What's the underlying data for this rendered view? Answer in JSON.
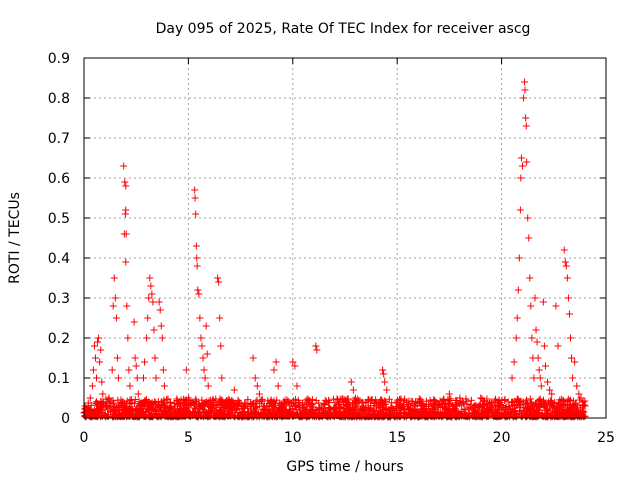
{
  "chart_data": {
    "type": "scatter",
    "title": "Day 095 of 2025, Rate Of TEC Index for receiver ascg",
    "xlabel": "GPS time / hours",
    "ylabel": "ROTI / TECUs",
    "xlim": [
      0,
      25
    ],
    "ylim": [
      0,
      0.9
    ],
    "xticks": [
      0,
      5,
      10,
      15,
      20,
      25
    ],
    "yticks": [
      0,
      0.1,
      0.2,
      0.3,
      0.4,
      0.5,
      0.6,
      0.7,
      0.8,
      0.9
    ],
    "xtick_labels": [
      "0",
      "5",
      "10",
      "15",
      "20",
      "25"
    ],
    "ytick_labels": [
      "0",
      "0.1",
      "0.2",
      "0.3",
      "0.4",
      "0.5",
      "0.6",
      "0.7",
      "0.8",
      "0.9"
    ],
    "grid": true,
    "marker": "+",
    "color": "#ff0000",
    "series": [
      {
        "name": "ROTI",
        "points": [
          [
            0.05,
            0.03
          ],
          [
            0.15,
            0.02
          ],
          [
            0.3,
            0.05
          ],
          [
            0.4,
            0.08
          ],
          [
            0.45,
            0.12
          ],
          [
            0.5,
            0.18
          ],
          [
            0.55,
            0.15
          ],
          [
            0.6,
            0.1
          ],
          [
            0.65,
            0.19
          ],
          [
            0.7,
            0.2
          ],
          [
            0.75,
            0.14
          ],
          [
            0.8,
            0.17
          ],
          [
            0.85,
            0.09
          ],
          [
            0.9,
            0.06
          ],
          [
            1.2,
            0.05
          ],
          [
            1.35,
            0.12
          ],
          [
            1.4,
            0.28
          ],
          [
            1.45,
            0.35
          ],
          [
            1.5,
            0.3
          ],
          [
            1.55,
            0.25
          ],
          [
            1.6,
            0.15
          ],
          [
            1.65,
            0.1
          ],
          [
            1.9,
            0.63
          ],
          [
            1.95,
            0.59
          ],
          [
            2.0,
            0.58
          ],
          [
            2.0,
            0.52
          ],
          [
            1.98,
            0.51
          ],
          [
            1.93,
            0.46
          ],
          [
            2.02,
            0.46
          ],
          [
            2.0,
            0.39
          ],
          [
            2.05,
            0.28
          ],
          [
            2.1,
            0.2
          ],
          [
            2.15,
            0.12
          ],
          [
            2.2,
            0.08
          ],
          [
            2.4,
            0.24
          ],
          [
            2.45,
            0.15
          ],
          [
            2.5,
            0.13
          ],
          [
            2.55,
            0.1
          ],
          [
            2.6,
            0.06
          ],
          [
            2.85,
            0.1
          ],
          [
            2.9,
            0.14
          ],
          [
            3.0,
            0.2
          ],
          [
            3.05,
            0.25
          ],
          [
            3.1,
            0.3
          ],
          [
            3.15,
            0.35
          ],
          [
            3.2,
            0.33
          ],
          [
            3.25,
            0.31
          ],
          [
            3.3,
            0.29
          ],
          [
            3.35,
            0.22
          ],
          [
            3.4,
            0.15
          ],
          [
            3.45,
            0.1
          ],
          [
            3.6,
            0.29
          ],
          [
            3.65,
            0.27
          ],
          [
            3.7,
            0.23
          ],
          [
            3.75,
            0.2
          ],
          [
            3.8,
            0.12
          ],
          [
            3.85,
            0.08
          ],
          [
            4.9,
            0.12
          ],
          [
            5.0,
            0.05
          ],
          [
            5.3,
            0.57
          ],
          [
            5.32,
            0.55
          ],
          [
            5.35,
            0.51
          ],
          [
            5.38,
            0.43
          ],
          [
            5.4,
            0.4
          ],
          [
            5.42,
            0.38
          ],
          [
            5.45,
            0.32
          ],
          [
            5.5,
            0.31
          ],
          [
            5.55,
            0.25
          ],
          [
            5.6,
            0.2
          ],
          [
            5.65,
            0.18
          ],
          [
            5.7,
            0.15
          ],
          [
            5.75,
            0.12
          ],
          [
            5.8,
            0.1
          ],
          [
            5.85,
            0.23
          ],
          [
            5.9,
            0.16
          ],
          [
            5.95,
            0.08
          ],
          [
            6.4,
            0.35
          ],
          [
            6.45,
            0.34
          ],
          [
            6.5,
            0.25
          ],
          [
            6.55,
            0.18
          ],
          [
            6.6,
            0.1
          ],
          [
            7.2,
            0.07
          ],
          [
            8.1,
            0.15
          ],
          [
            8.2,
            0.1
          ],
          [
            8.3,
            0.08
          ],
          [
            8.4,
            0.06
          ],
          [
            9.1,
            0.12
          ],
          [
            9.2,
            0.14
          ],
          [
            9.3,
            0.08
          ],
          [
            10.0,
            0.14
          ],
          [
            10.1,
            0.13
          ],
          [
            10.2,
            0.08
          ],
          [
            11.1,
            0.18
          ],
          [
            11.15,
            0.17
          ],
          [
            12.8,
            0.09
          ],
          [
            12.9,
            0.07
          ],
          [
            13.0,
            0.05
          ],
          [
            14.3,
            0.12
          ],
          [
            14.35,
            0.11
          ],
          [
            14.4,
            0.09
          ],
          [
            14.5,
            0.07
          ],
          [
            17.5,
            0.06
          ],
          [
            18.0,
            0.05
          ],
          [
            19.0,
            0.05
          ],
          [
            20.5,
            0.1
          ],
          [
            20.6,
            0.14
          ],
          [
            20.7,
            0.2
          ],
          [
            20.75,
            0.25
          ],
          [
            20.8,
            0.32
          ],
          [
            20.85,
            0.4
          ],
          [
            20.9,
            0.52
          ],
          [
            20.92,
            0.6
          ],
          [
            20.95,
            0.65
          ],
          [
            21.0,
            0.63
          ],
          [
            21.05,
            0.8
          ],
          [
            21.1,
            0.84
          ],
          [
            21.12,
            0.82
          ],
          [
            21.15,
            0.75
          ],
          [
            21.18,
            0.73
          ],
          [
            21.2,
            0.64
          ],
          [
            21.25,
            0.5
          ],
          [
            21.3,
            0.45
          ],
          [
            21.35,
            0.35
          ],
          [
            21.4,
            0.28
          ],
          [
            21.45,
            0.2
          ],
          [
            21.5,
            0.15
          ],
          [
            21.55,
            0.1
          ],
          [
            21.6,
            0.3
          ],
          [
            21.65,
            0.22
          ],
          [
            21.7,
            0.19
          ],
          [
            21.75,
            0.15
          ],
          [
            21.8,
            0.12
          ],
          [
            21.85,
            0.1
          ],
          [
            21.9,
            0.08
          ],
          [
            22.0,
            0.29
          ],
          [
            22.05,
            0.18
          ],
          [
            22.1,
            0.13
          ],
          [
            22.2,
            0.09
          ],
          [
            22.3,
            0.07
          ],
          [
            22.4,
            0.06
          ],
          [
            22.6,
            0.28
          ],
          [
            22.7,
            0.18
          ],
          [
            23.0,
            0.42
          ],
          [
            23.05,
            0.39
          ],
          [
            23.1,
            0.38
          ],
          [
            23.15,
            0.35
          ],
          [
            23.2,
            0.3
          ],
          [
            23.25,
            0.26
          ],
          [
            23.3,
            0.2
          ],
          [
            23.35,
            0.15
          ],
          [
            23.4,
            0.1
          ],
          [
            23.5,
            0.14
          ],
          [
            23.6,
            0.08
          ],
          [
            23.7,
            0.06
          ],
          [
            23.8,
            0.05
          ],
          [
            23.9,
            0.04
          ],
          [
            24.0,
            0.03
          ]
        ]
      }
    ]
  }
}
